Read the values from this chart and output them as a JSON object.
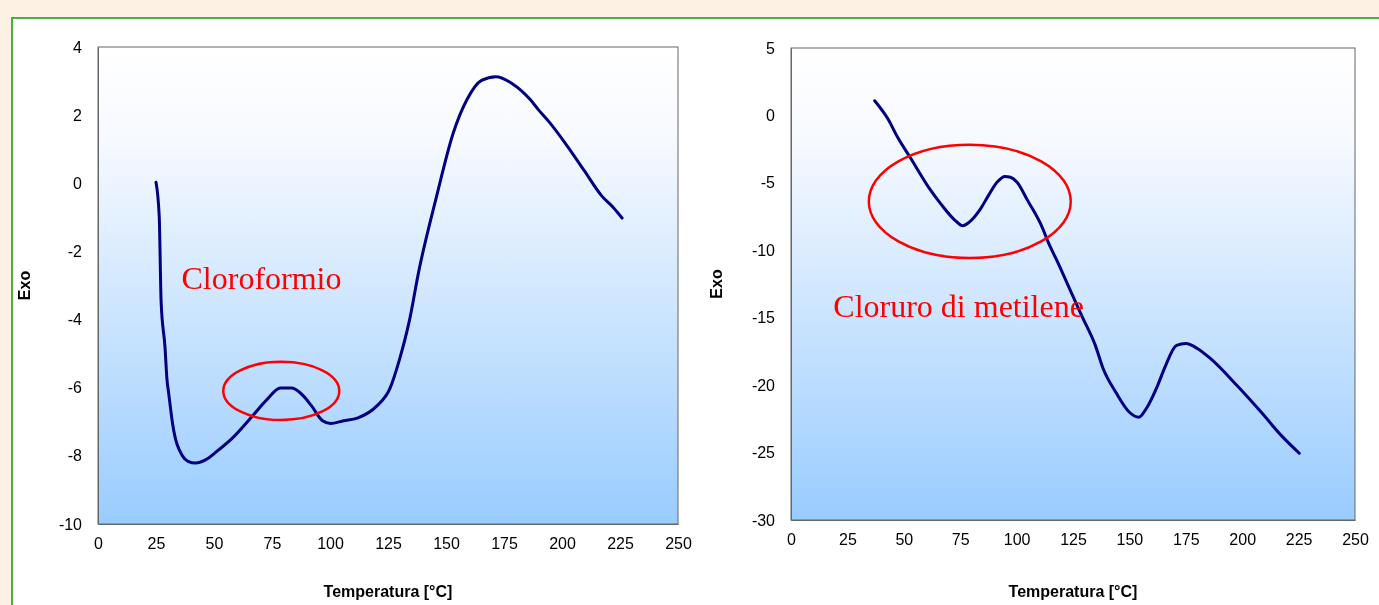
{
  "chart_data": [
    {
      "type": "line",
      "xlabel": "Temperatura [°C]",
      "ylabel": "Exo",
      "annotations": [
        "Cloroformio"
      ],
      "xlim": [
        0,
        250
      ],
      "xticks": [
        0,
        25,
        50,
        75,
        100,
        125,
        150,
        175,
        200,
        225,
        250
      ],
      "ylim": [
        -10,
        4
      ],
      "yticks": [
        -10,
        -8,
        -6,
        -4,
        -2,
        0,
        2,
        4
      ],
      "series": [
        {
          "color": "#000080",
          "x": [
            25,
            26.4,
            27.2,
            28.9,
            29.7,
            30.5,
            32.2,
            36.3,
            38.8,
            42.1,
            46.3,
            51.2,
            57.9,
            66.2,
            72.8,
            78.6,
            83.6,
            88.5,
            91.9,
            96.8,
            100.2,
            105.9,
            111.8,
            120.1,
            125.9,
            130,
            134.2,
            138.3,
            145.8,
            153.2,
            159,
            165.3,
            171.5,
            178.9,
            186.4,
            189.7,
            194.7,
            202.2,
            209.6,
            217.1,
            222.1,
            225.9
          ],
          "values": [
            0.03,
            -0.99,
            -3.47,
            -4.83,
            -5.73,
            -6.18,
            -7.08,
            -7.99,
            -8.16,
            -8.21,
            -8.12,
            -7.87,
            -7.48,
            -6.86,
            -6.35,
            -6.01,
            -6.01,
            -6.24,
            -6.52,
            -6.97,
            -7.05,
            -6.97,
            -6.89,
            -6.54,
            -6.01,
            -5.16,
            -4.04,
            -2.57,
            -0.42,
            1.49,
            2.45,
            3.02,
            3.13,
            2.91,
            2.45,
            2.17,
            1.78,
            1.1,
            0.37,
            -0.37,
            -0.71,
            -1.02
          ]
        }
      ]
    },
    {
      "type": "line",
      "xlabel": "Temperatura [°C]",
      "ylabel": "Exo",
      "annotations": [
        "Cloruro di metilene"
      ],
      "xlim": [
        0,
        250
      ],
      "xticks": [
        0,
        25,
        50,
        75,
        100,
        125,
        150,
        175,
        200,
        225,
        250
      ],
      "ylim": [
        -30,
        5
      ],
      "yticks": [
        -30,
        -25,
        -20,
        -15,
        -10,
        -5,
        0,
        5
      ],
      "series": [
        {
          "color": "#000080",
          "x": [
            37.1,
            43,
            47.2,
            53,
            61.4,
            66.4,
            73.1,
            76.1,
            78.9,
            84,
            87.3,
            91.5,
            94.8,
            97.3,
            100.2,
            104.8,
            111.5,
            114,
            118.2,
            124.1,
            129.1,
            134.9,
            138.3,
            144.2,
            150,
            154.2,
            157.5,
            162.5,
            165.9,
            170.9,
            175.1,
            180.1,
            186,
            197.7,
            207.7,
            217.7,
            225.3
          ],
          "values": [
            1.09,
            -0.27,
            -1.6,
            -3.16,
            -5.43,
            -6.56,
            -7.84,
            -8.18,
            -7.93,
            -6.93,
            -6,
            -4.92,
            -4.52,
            -4.58,
            -4.95,
            -6.28,
            -8.35,
            -9.4,
            -10.87,
            -13.08,
            -14.93,
            -17.05,
            -18.75,
            -20.59,
            -22.01,
            -22.38,
            -21.73,
            -20.03,
            -18.61,
            -17.05,
            -16.91,
            -17.28,
            -18.04,
            -20.03,
            -21.87,
            -23.8,
            -25.05
          ]
        }
      ]
    }
  ]
}
